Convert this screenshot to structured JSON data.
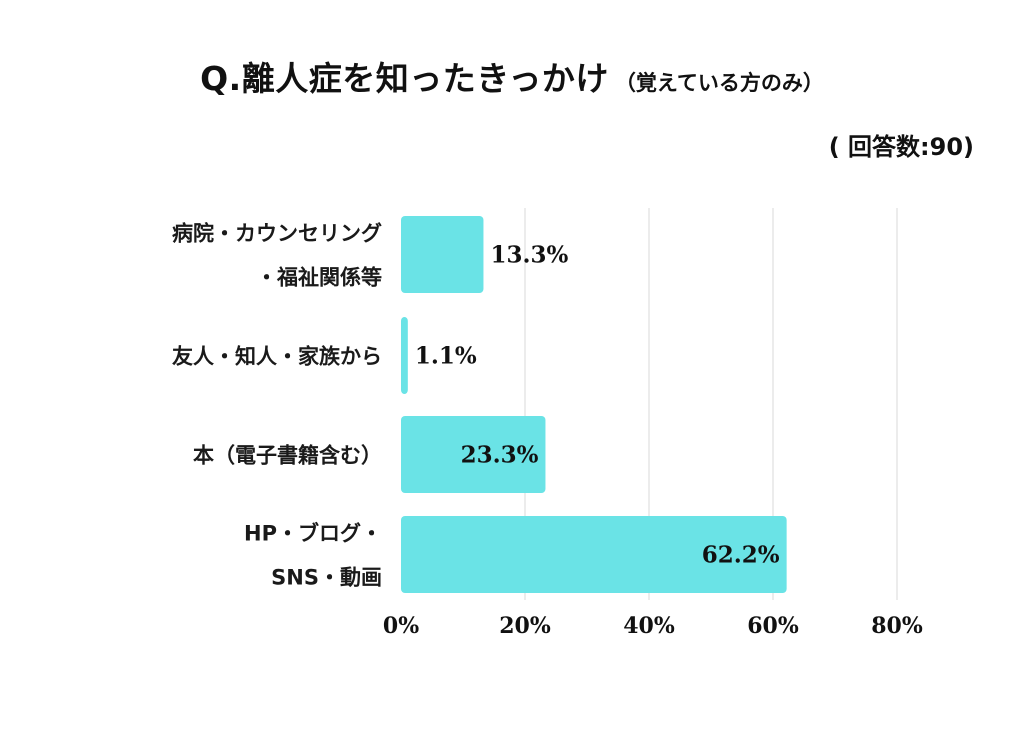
{
  "title": "Q.離人症を知ったきっかけ",
  "subtitle": "（覚えている方のみ）",
  "respondents": "( 回答数:90)",
  "colors": {
    "bar": "#6ae3e6",
    "grid": "#d9d9d9",
    "text": "#111111"
  },
  "chart_data": {
    "type": "bar",
    "orientation": "horizontal",
    "categories": [
      [
        "病院・カウンセリング",
        "・福祉関係等"
      ],
      [
        "友人・知人・家族から"
      ],
      [
        "本（電子書籍含む）"
      ],
      [
        "HP・ブログ・",
        "SNS・動画"
      ]
    ],
    "values": [
      13.3,
      1.1,
      23.3,
      62.2
    ],
    "value_labels": [
      "13.3%",
      "1.1%",
      "23.3%",
      "62.2%"
    ],
    "xlim": [
      0,
      80
    ],
    "x_ticks": [
      "0%",
      "20%",
      "40%",
      "60%",
      "80%"
    ],
    "grid": true,
    "legend": "none"
  }
}
